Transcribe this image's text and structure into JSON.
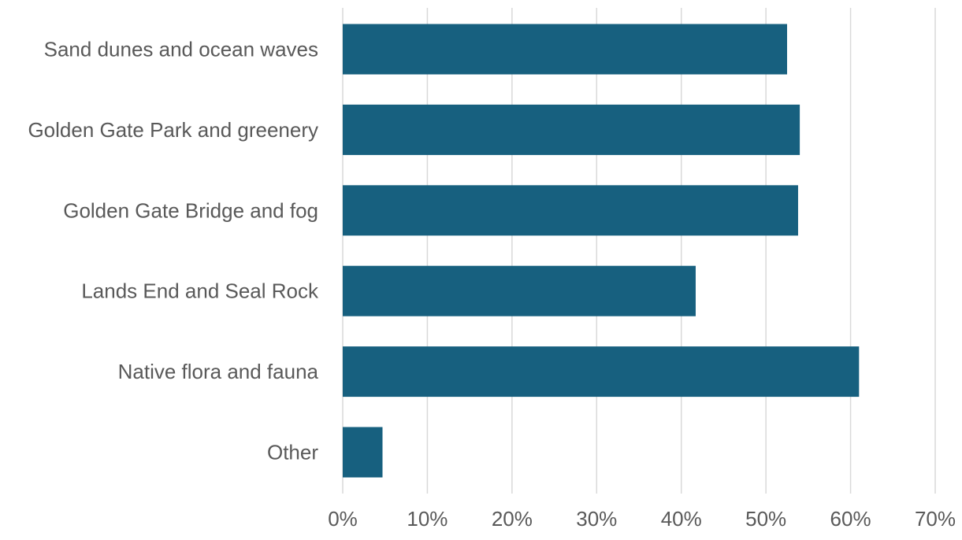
{
  "chart_data": {
    "type": "bar",
    "orientation": "horizontal",
    "title": "",
    "xlabel": "",
    "ylabel": "",
    "categories": [
      "Sand dunes and ocean waves",
      "Golden Gate Park and greenery",
      "Golden Gate Bridge and fog",
      "Lands End and Seal Rock",
      "Native flora and fauna",
      "Other"
    ],
    "values": [
      52.5,
      54.0,
      53.8,
      41.7,
      61.0,
      4.7
    ],
    "xlim": [
      0,
      70
    ],
    "x_ticks": [
      "0%",
      "10%",
      "20%",
      "30%",
      "40%",
      "50%",
      "60%",
      "70%"
    ],
    "grid": "vertical",
    "legend": "none",
    "bar_color": "#17607F",
    "grid_color": "#D9D9D9",
    "text_color": "#595959"
  }
}
